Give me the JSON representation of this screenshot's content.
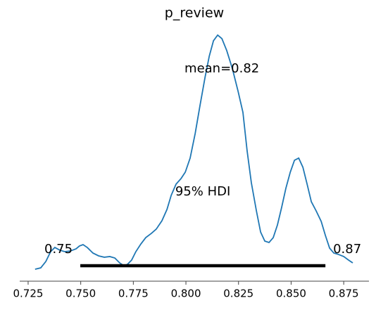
{
  "chart_data": {
    "type": "line",
    "title": "p_review",
    "x": [
      0.7283,
      0.731,
      0.7334,
      0.7357,
      0.7377,
      0.7401,
      0.7424,
      0.7451,
      0.7478,
      0.7494,
      0.7511,
      0.7531,
      0.7558,
      0.7585,
      0.7612,
      0.7638,
      0.7662,
      0.7685,
      0.7705,
      0.7722,
      0.7742,
      0.7762,
      0.7786,
      0.7809,
      0.7836,
      0.7859,
      0.7886,
      0.791,
      0.793,
      0.7953,
      0.7977,
      0.7997,
      0.802,
      0.8044,
      0.8067,
      0.8091,
      0.8111,
      0.8131,
      0.8151,
      0.8171,
      0.8194,
      0.8221,
      0.8248,
      0.8271,
      0.8291,
      0.8311,
      0.8335,
      0.8355,
      0.8375,
      0.8395,
      0.8415,
      0.8435,
      0.8455,
      0.8475,
      0.8496,
      0.8516,
      0.8536,
      0.8556,
      0.8576,
      0.8596,
      0.8619,
      0.8643,
      0.8663,
      0.8683,
      0.8703,
      0.8726,
      0.875,
      0.8773,
      0.8793
    ],
    "series": [
      {
        "color": "#1f77b4",
        "values": [
          0,
          0.14,
          0.79,
          1.8,
          2.23,
          1.95,
          1.8,
          1.87,
          2.09,
          2.38,
          2.52,
          2.23,
          1.66,
          1.37,
          1.23,
          1.3,
          1.15,
          0.65,
          0.36,
          0.5,
          0.94,
          1.8,
          2.59,
          3.24,
          3.68,
          4.11,
          4.97,
          6.13,
          7.57,
          8.72,
          9.3,
          9.95,
          11.39,
          13.91,
          16.79,
          19.68,
          21.84,
          23.42,
          24.0,
          23.64,
          22.41,
          20.54,
          18.23,
          16.07,
          12.11,
          8.86,
          5.98,
          3.81,
          2.88,
          2.74,
          3.24,
          4.54,
          6.34,
          8.29,
          9.95,
          11.17,
          11.39,
          10.45,
          8.72,
          6.92,
          5.98,
          4.9,
          3.46,
          2.16,
          1.66,
          1.51,
          1.3,
          0.94,
          0.65
        ]
      }
    ],
    "mean": 0.8171,
    "mean_label": "mean=0.82",
    "hdi": {
      "label": "95% HDI",
      "values": [
        0.7498,
        0.8663
      ],
      "value_labels": [
        "0.75",
        "0.87"
      ],
      "color": "#000000"
    },
    "xlim": [
      0.721,
      0.887
    ],
    "ylim": [
      0,
      25
    ],
    "xticks": [
      {
        "value": 0.725,
        "label": "0.725"
      },
      {
        "value": 0.75,
        "label": "0.750"
      },
      {
        "value": 0.775,
        "label": "0.775"
      },
      {
        "value": 0.8,
        "label": "0.800"
      },
      {
        "value": 0.825,
        "label": "0.825"
      },
      {
        "value": 0.85,
        "label": "0.850"
      },
      {
        "value": 0.875,
        "label": "0.875"
      }
    ]
  }
}
